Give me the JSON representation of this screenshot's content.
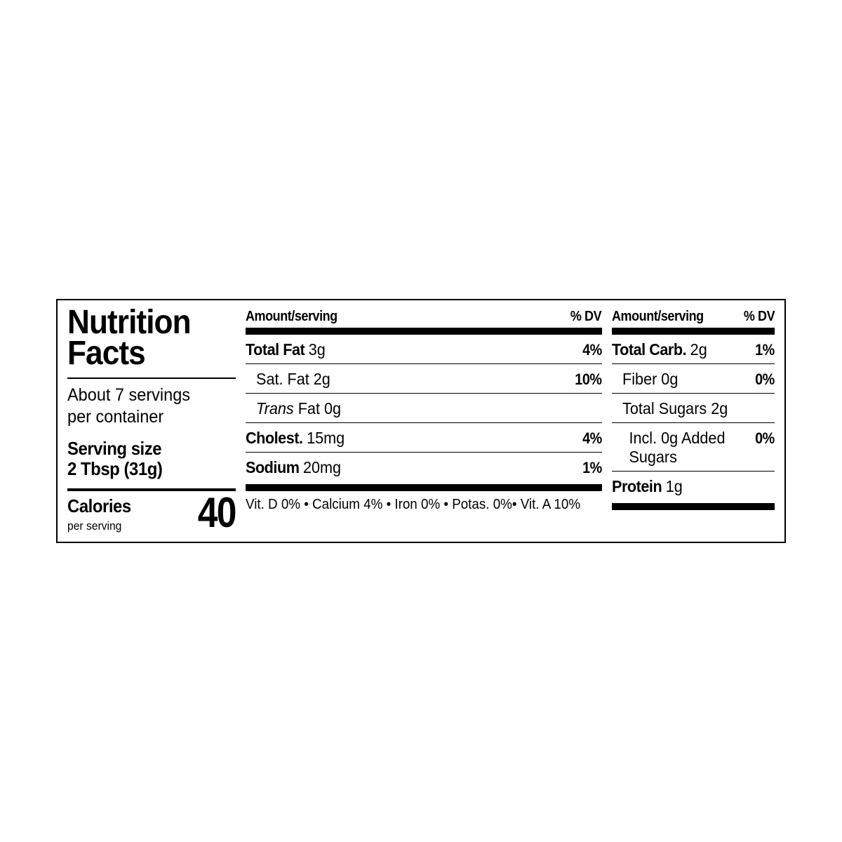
{
  "title1": "Nutrition",
  "title2": "Facts",
  "servings_line1": "About 7 servings",
  "servings_line2": "per container",
  "serving_size_label": "Serving size",
  "serving_size_value": "2 Tbsp (31g)",
  "calories_label": "Calories",
  "calories_sub": "per serving",
  "calories_value": "40",
  "hdr_amount": "Amount/serving",
  "hdr_dv": "% DV",
  "col1": {
    "r1_name_b": "Total Fat ",
    "r1_name": "3g",
    "r1_dv": "4%",
    "r2_name": "Sat. Fat 2g",
    "r2_dv": "10%",
    "r3_prefix": "",
    "r3_trans": "Trans",
    "r3_suffix": " Fat 0g",
    "r4_name_b": "Cholest. ",
    "r4_name": "15mg",
    "r4_dv": "4%",
    "r5_name_b": "Sodium ",
    "r5_name": "20mg",
    "r5_dv": "1%"
  },
  "col2": {
    "r1_name_b": "Total Carb. ",
    "r1_name": "2g",
    "r1_dv": "1%",
    "r2_name": "Fiber 0g",
    "r2_dv": "0%",
    "r3_name": "Total Sugars 2g",
    "r4_name": "Incl. 0g Added Sugars",
    "r4_dv": "0%",
    "r5_name_b": "Protein ",
    "r5_name": "1g"
  },
  "vitamins": "Vit. D 0% • Calcium 4% • Iron 0% • Potas. 0%• Vit. A 10%"
}
